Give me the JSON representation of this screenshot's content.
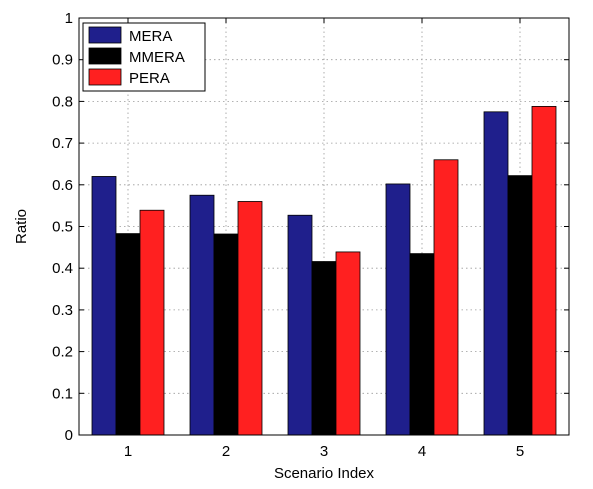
{
  "chart_data": {
    "type": "bar",
    "title": "",
    "xlabel": "Scenario Index",
    "ylabel": "Ratio",
    "categories": [
      "1",
      "2",
      "3",
      "4",
      "5"
    ],
    "ylim": [
      0,
      1
    ],
    "yticks": [
      "0",
      "0.1",
      "0.2",
      "0.3",
      "0.4",
      "0.5",
      "0.6",
      "0.7",
      "0.8",
      "0.9",
      "1"
    ],
    "grid": true,
    "legend_position": "top-left",
    "series": [
      {
        "name": "MERA",
        "color": "#1f1f8c",
        "values": [
          0.62,
          0.575,
          0.527,
          0.602,
          0.775
        ]
      },
      {
        "name": "MMERA",
        "color": "#000000",
        "values": [
          0.483,
          0.482,
          0.416,
          0.435,
          0.622
        ]
      },
      {
        "name": "PERA",
        "color": "#ff2020",
        "values": [
          0.539,
          0.56,
          0.439,
          0.66,
          0.788
        ]
      }
    ]
  }
}
